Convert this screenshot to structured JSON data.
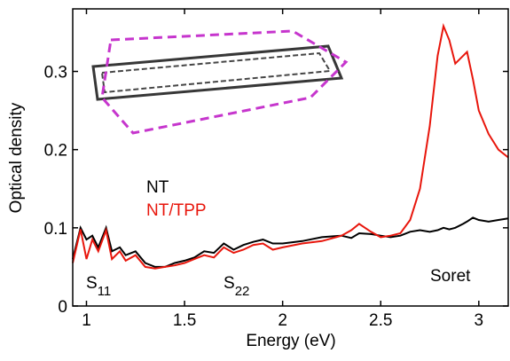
{
  "chart_data": {
    "type": "line",
    "x_label": "Energy (eV)",
    "y_label": "Optical density",
    "xlim": [
      0.93,
      3.15
    ],
    "ylim": [
      0,
      0.38
    ],
    "xticks": [
      1,
      1.5,
      2,
      2.5,
      3
    ],
    "yticks": [
      0,
      0.1,
      0.2,
      0.3
    ],
    "x": [
      0.93,
      0.97,
      1.0,
      1.03,
      1.06,
      1.1,
      1.13,
      1.17,
      1.2,
      1.25,
      1.3,
      1.35,
      1.4,
      1.45,
      1.5,
      1.55,
      1.6,
      1.65,
      1.7,
      1.75,
      1.8,
      1.85,
      1.9,
      1.95,
      2.0,
      2.1,
      2.2,
      2.3,
      2.35,
      2.39,
      2.45,
      2.5,
      2.55,
      2.6,
      2.65,
      2.7,
      2.75,
      2.79,
      2.82,
      2.85,
      2.88,
      2.92,
      2.94,
      2.97,
      3.0,
      3.05,
      3.1,
      3.15
    ],
    "series": [
      {
        "name": "NT",
        "color": "#000000",
        "values": [
          0.06,
          0.1,
          0.085,
          0.09,
          0.075,
          0.1,
          0.07,
          0.075,
          0.065,
          0.07,
          0.055,
          0.05,
          0.05,
          0.055,
          0.058,
          0.062,
          0.07,
          0.068,
          0.08,
          0.072,
          0.078,
          0.082,
          0.085,
          0.08,
          0.08,
          0.083,
          0.088,
          0.09,
          0.087,
          0.093,
          0.092,
          0.09,
          0.088,
          0.09,
          0.095,
          0.097,
          0.095,
          0.097,
          0.1,
          0.098,
          0.1,
          0.105,
          0.108,
          0.113,
          0.11,
          0.108,
          0.11,
          0.112
        ]
      },
      {
        "name": "NT/TPP",
        "color": "#e8160c",
        "values": [
          0.055,
          0.098,
          0.06,
          0.085,
          0.07,
          0.097,
          0.06,
          0.07,
          0.058,
          0.065,
          0.05,
          0.048,
          0.05,
          0.052,
          0.055,
          0.06,
          0.065,
          0.062,
          0.075,
          0.068,
          0.072,
          0.078,
          0.08,
          0.072,
          0.075,
          0.08,
          0.083,
          0.09,
          0.097,
          0.105,
          0.095,
          0.088,
          0.09,
          0.093,
          0.11,
          0.15,
          0.23,
          0.32,
          0.358,
          0.34,
          0.31,
          0.32,
          0.325,
          0.29,
          0.25,
          0.22,
          0.2,
          0.19
        ]
      }
    ],
    "annotations": [
      {
        "text": "S",
        "sub": "11"
      },
      {
        "text": "S",
        "sub": "22"
      },
      {
        "text": "Soret"
      }
    ]
  }
}
